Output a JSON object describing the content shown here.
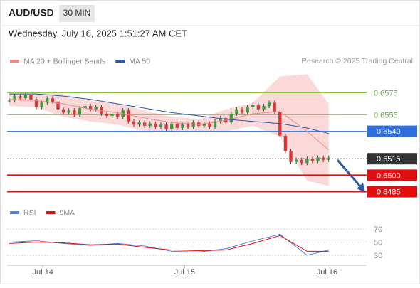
{
  "header": {
    "symbol": "AUD/USD",
    "timeframe": "30 MIN",
    "date": "Wednesday, July 16, 2025 1:51:27 AM CET",
    "source": "Research © 2025 Trading Central"
  },
  "chart_data": [
    {
      "type": "candlestick",
      "xlim": [
        -0.4,
        66
      ],
      "xticks": [
        {
          "value": 6.2,
          "label": "Jul 14"
        },
        {
          "value": 32.4,
          "label": "Jul 15"
        },
        {
          "value": 58.7,
          "label": "Jul 16"
        }
      ],
      "ylim": [
        0.6475,
        0.6598
      ],
      "up_color": "#3d9a3d",
      "down_color": "#d43a3a",
      "closes": [
        0.6568,
        0.6572,
        0.657,
        0.6573,
        0.6569,
        0.6562,
        0.6566,
        0.657,
        0.6567,
        0.656,
        0.6557,
        0.6559,
        0.6555,
        0.6561,
        0.6563,
        0.656,
        0.6562,
        0.6556,
        0.6554,
        0.6556,
        0.6553,
        0.6559,
        0.6549,
        0.6546,
        0.6548,
        0.6545,
        0.6547,
        0.6544,
        0.6546,
        0.6542,
        0.6547,
        0.6543,
        0.6546,
        0.6544,
        0.6548,
        0.6545,
        0.6547,
        0.6544,
        0.6549,
        0.6552,
        0.6548,
        0.6556,
        0.656,
        0.6557,
        0.6562,
        0.6564,
        0.656,
        0.6563,
        0.6566,
        0.6558,
        0.6536,
        0.6522,
        0.6512,
        0.6514,
        0.6511,
        0.6515,
        0.6513,
        0.6516,
        0.6514,
        0.6516
      ],
      "x": [
        0,
        5,
        10,
        15,
        20,
        25,
        30,
        35,
        40,
        45,
        50,
        55,
        59
      ],
      "band": {
        "color": "#f7b9b9",
        "upper": [
          0.6575,
          0.6576,
          0.6574,
          0.6568,
          0.6565,
          0.6559,
          0.6553,
          0.6551,
          0.656,
          0.6566,
          0.659,
          0.6592,
          0.6565
        ],
        "lower": [
          0.6563,
          0.6562,
          0.6553,
          0.6549,
          0.6546,
          0.654,
          0.6539,
          0.6539,
          0.654,
          0.6545,
          0.6535,
          0.6495,
          0.649
        ]
      },
      "series": [
        {
          "name": "MA 20 + Bollinger Bands",
          "color": "#f08a84",
          "values": [
            0.6569,
            0.6568,
            0.6565,
            0.656,
            0.6557,
            0.6552,
            0.6548,
            0.6546,
            0.655,
            0.6556,
            0.6558,
            0.654,
            0.6523
          ]
        },
        {
          "name": "MA 50",
          "color": "#2c5aa0",
          "values": [
            0.6574,
            0.6574,
            0.6572,
            0.6569,
            0.6565,
            0.6561,
            0.6557,
            0.6554,
            0.6551,
            0.6549,
            0.6547,
            0.6543,
            0.6538
          ]
        }
      ],
      "levels": [
        {
          "value": 0.6575,
          "color": "#8dc63f",
          "boxed": false
        },
        {
          "value": 0.6555,
          "color": "#8dc63f",
          "boxed": false
        },
        {
          "value": 0.654,
          "label": "0.6540",
          "color": "#2f6fdb",
          "boxed": true
        },
        {
          "value": 0.6515,
          "color": "#333333",
          "boxed": true,
          "dashed": true
        },
        {
          "value": 0.65,
          "label": "0.6500",
          "color": "#e01010",
          "boxed": true
        },
        {
          "value": 0.6485,
          "color": "#e01010",
          "boxed": true
        }
      ]
    },
    {
      "type": "line",
      "xlim": [
        -0.4,
        66
      ],
      "ylim": [
        18,
        94
      ],
      "yticks": [
        30,
        50,
        70
      ],
      "x": [
        0,
        5,
        10,
        15,
        20,
        25,
        30,
        35,
        40,
        45,
        50,
        55,
        59
      ],
      "series": [
        {
          "name": "RSI",
          "color": "#5b7fdc",
          "values": [
            50,
            52,
            48,
            45,
            48,
            44,
            36,
            35,
            40,
            52,
            62,
            30,
            38
          ]
        },
        {
          "name": "9MA",
          "color": "#e01010",
          "values": [
            48,
            50,
            49,
            46,
            47,
            42,
            38,
            37,
            38,
            48,
            60,
            36,
            36
          ]
        }
      ]
    }
  ]
}
